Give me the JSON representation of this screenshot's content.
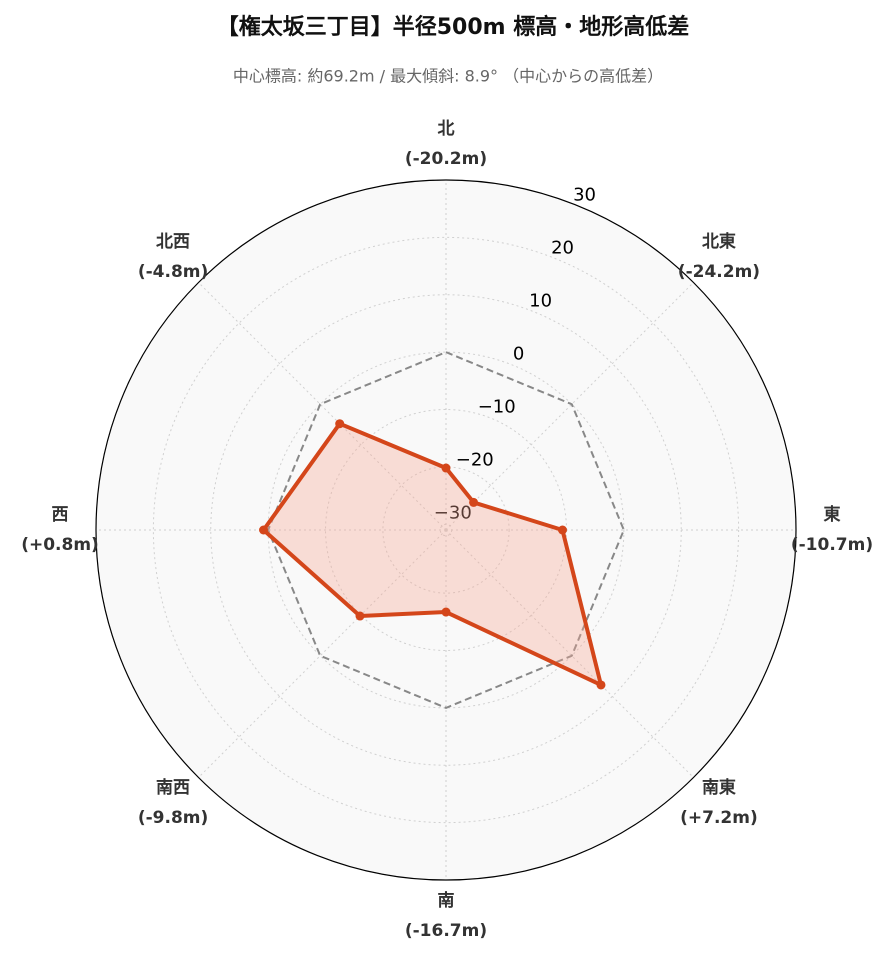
{
  "chart_data": {
    "type": "radar",
    "title": "【権太坂三丁目】半径500m 標高・地形高低差",
    "subtitle": "中心標高: 約69.2m / 最大傾斜: 8.9° （中心からの高低差）",
    "categories": [
      "北",
      "北東",
      "東",
      "南東",
      "南",
      "南西",
      "西",
      "北西"
    ],
    "values": [
      -20.2,
      -24.2,
      -10.7,
      7.2,
      -16.7,
      -9.8,
      0.8,
      -4.8
    ],
    "value_labels": [
      "(-20.2m)",
      "(-24.2m)",
      "(-10.7m)",
      "(+7.2m)",
      "(-16.7m)",
      "(-9.8m)",
      "(+0.8m)",
      "(-4.8m)"
    ],
    "color": "#d4461a",
    "fill_color": "#f7a593",
    "ylim": [
      -31,
      30
    ],
    "yticks": [
      {
        "value": -30,
        "label": "−30"
      },
      {
        "value": -20,
        "label": "−20"
      },
      {
        "value": -10,
        "label": "−10"
      },
      0,
      10,
      20,
      30
    ],
    "reference": {
      "value": 0,
      "color": "#888888"
    },
    "grid": true
  }
}
